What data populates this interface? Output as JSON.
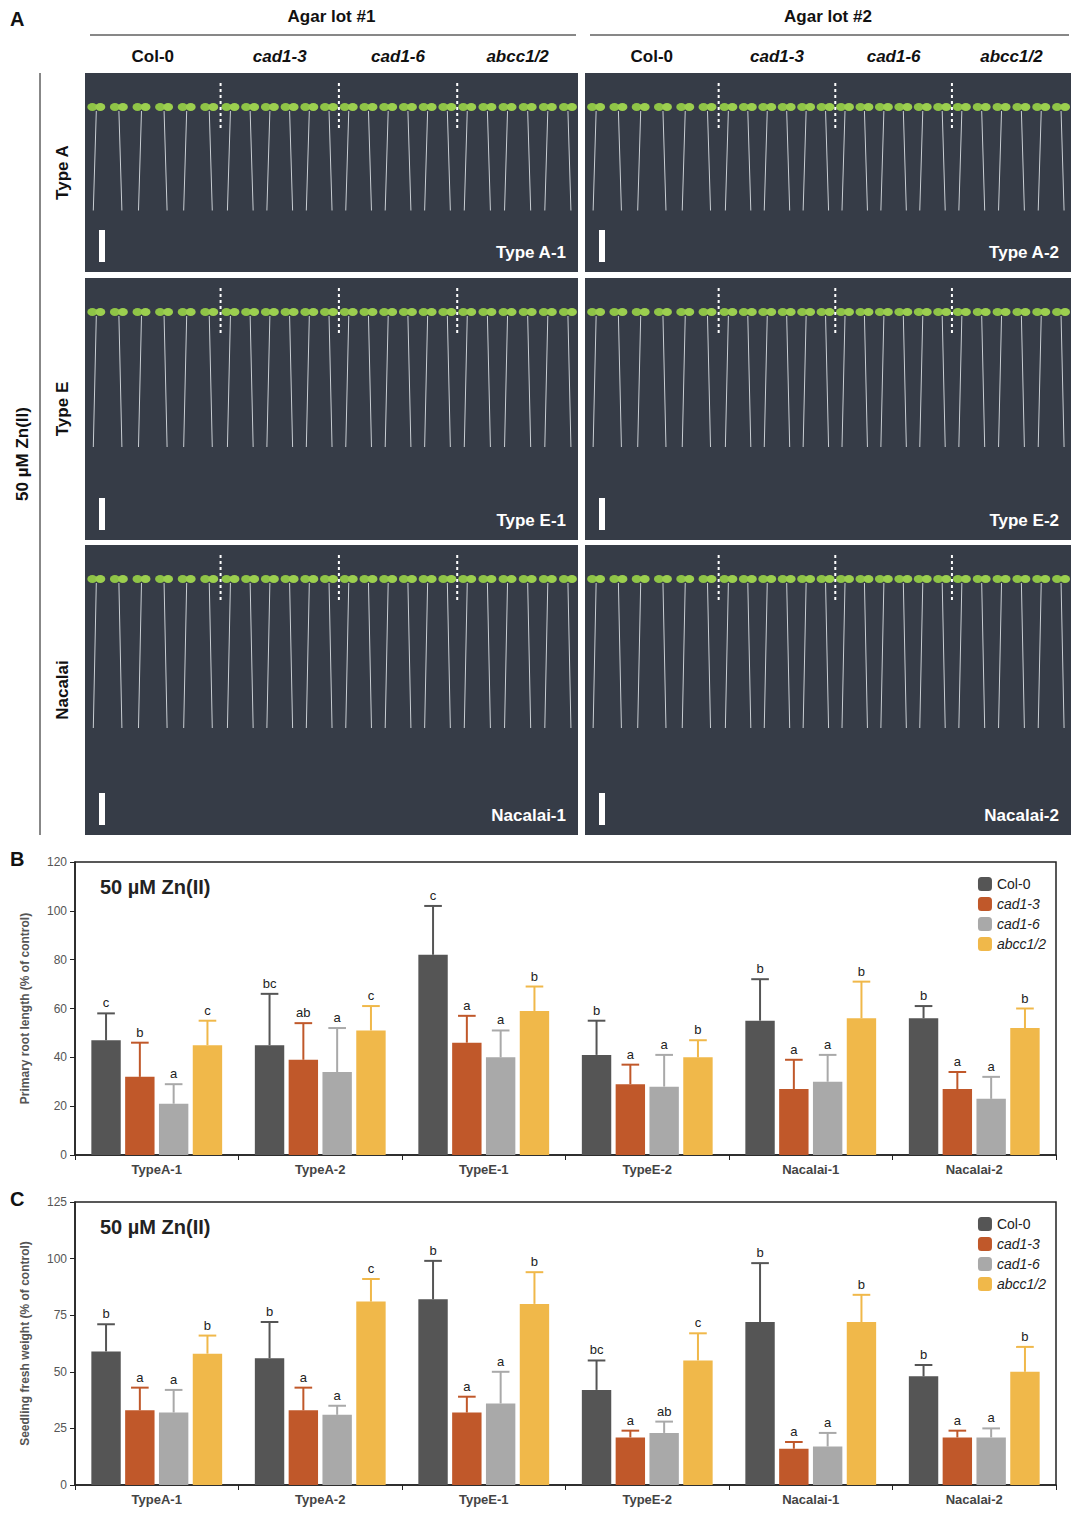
{
  "panel_a": {
    "panel": "A",
    "condition": "50 µM Zn(II)",
    "lots": [
      "Agar lot #1",
      "Agar lot #2"
    ],
    "genotypes": [
      "Col-0",
      "cad1-3",
      "cad1-6",
      "abcc1/2"
    ],
    "rows": [
      {
        "label": "Type A",
        "plates": [
          "Type A-1",
          "Type A-2"
        ]
      },
      {
        "label": "Type E",
        "plates": [
          "Type E-1",
          "Type E-2"
        ]
      },
      {
        "label": "Nacalai",
        "plates": [
          "Nacalai-1",
          "Nacalai-2"
        ]
      }
    ]
  },
  "chart_data": [
    {
      "panel": "B",
      "type": "bar",
      "title": "50 µM Zn(II)",
      "ylabel": "Primary root length (% of control)",
      "categories": [
        "TypeA-1",
        "TypeA-2",
        "TypeE-1",
        "TypeE-2",
        "Nacalai-1",
        "Nacalai-2"
      ],
      "series": [
        {
          "name": "Col-0",
          "color": "#555555",
          "values": [
            47,
            45,
            82,
            41,
            55,
            56
          ],
          "errors": [
            11,
            21,
            20,
            14,
            17,
            5
          ],
          "letters": [
            "c",
            "bc",
            "c",
            "b",
            "b",
            "b"
          ]
        },
        {
          "name": "cad1-3",
          "color": "#c0582a",
          "values": [
            32,
            39,
            46,
            29,
            27,
            27
          ],
          "errors": [
            14,
            15,
            11,
            8,
            12,
            7
          ],
          "letters": [
            "b",
            "ab",
            "a",
            "a",
            "a",
            "a"
          ]
        },
        {
          "name": "cad1-6",
          "color": "#a9a9a9",
          "values": [
            21,
            34,
            40,
            28,
            30,
            23
          ],
          "errors": [
            8,
            18,
            11,
            13,
            11,
            9
          ],
          "letters": [
            "a",
            "a",
            "a",
            "a",
            "a",
            "a"
          ]
        },
        {
          "name": "abcc1/2",
          "color": "#f0b84a",
          "values": [
            45,
            51,
            59,
            40,
            56,
            52
          ],
          "errors": [
            10,
            10,
            10,
            7,
            15,
            8
          ],
          "letters": [
            "c",
            "c",
            "b",
            "b",
            "b",
            "b"
          ]
        }
      ],
      "ylim": [
        0,
        120
      ],
      "yticks": [
        0,
        20,
        40,
        60,
        80,
        100,
        120
      ],
      "grid": false,
      "legend": "upper right"
    },
    {
      "panel": "C",
      "type": "bar",
      "title": "50 µM Zn(II)",
      "ylabel": "Seedling fresh weight (% of control)",
      "categories": [
        "TypeA-1",
        "TypeA-2",
        "TypeE-1",
        "TypeE-2",
        "Nacalai-1",
        "Nacalai-2"
      ],
      "series": [
        {
          "name": "Col-0",
          "color": "#555555",
          "values": [
            59,
            56,
            82,
            42,
            72,
            48
          ],
          "errors": [
            12,
            16,
            17,
            13,
            26,
            5
          ],
          "letters": [
            "b",
            "b",
            "b",
            "bc",
            "b",
            "b"
          ]
        },
        {
          "name": "cad1-3",
          "color": "#c0582a",
          "values": [
            33,
            33,
            32,
            21,
            16,
            21
          ],
          "errors": [
            10,
            10,
            7,
            3,
            3,
            3
          ],
          "letters": [
            "a",
            "a",
            "a",
            "a",
            "a",
            "a"
          ]
        },
        {
          "name": "cad1-6",
          "color": "#a9a9a9",
          "values": [
            32,
            31,
            36,
            23,
            17,
            21
          ],
          "errors": [
            10,
            4,
            14,
            5,
            6,
            4
          ],
          "letters": [
            "a",
            "a",
            "a",
            "ab",
            "a",
            "a"
          ]
        },
        {
          "name": "abcc1/2",
          "color": "#f0b84a",
          "values": [
            58,
            81,
            80,
            55,
            72,
            50
          ],
          "errors": [
            8,
            10,
            14,
            12,
            12,
            11
          ],
          "letters": [
            "b",
            "c",
            "b",
            "c",
            "b",
            "b"
          ]
        }
      ],
      "ylim": [
        0,
        125
      ],
      "yticks": [
        0,
        25,
        50,
        75,
        100,
        125
      ],
      "grid": false,
      "legend": "upper right"
    }
  ]
}
